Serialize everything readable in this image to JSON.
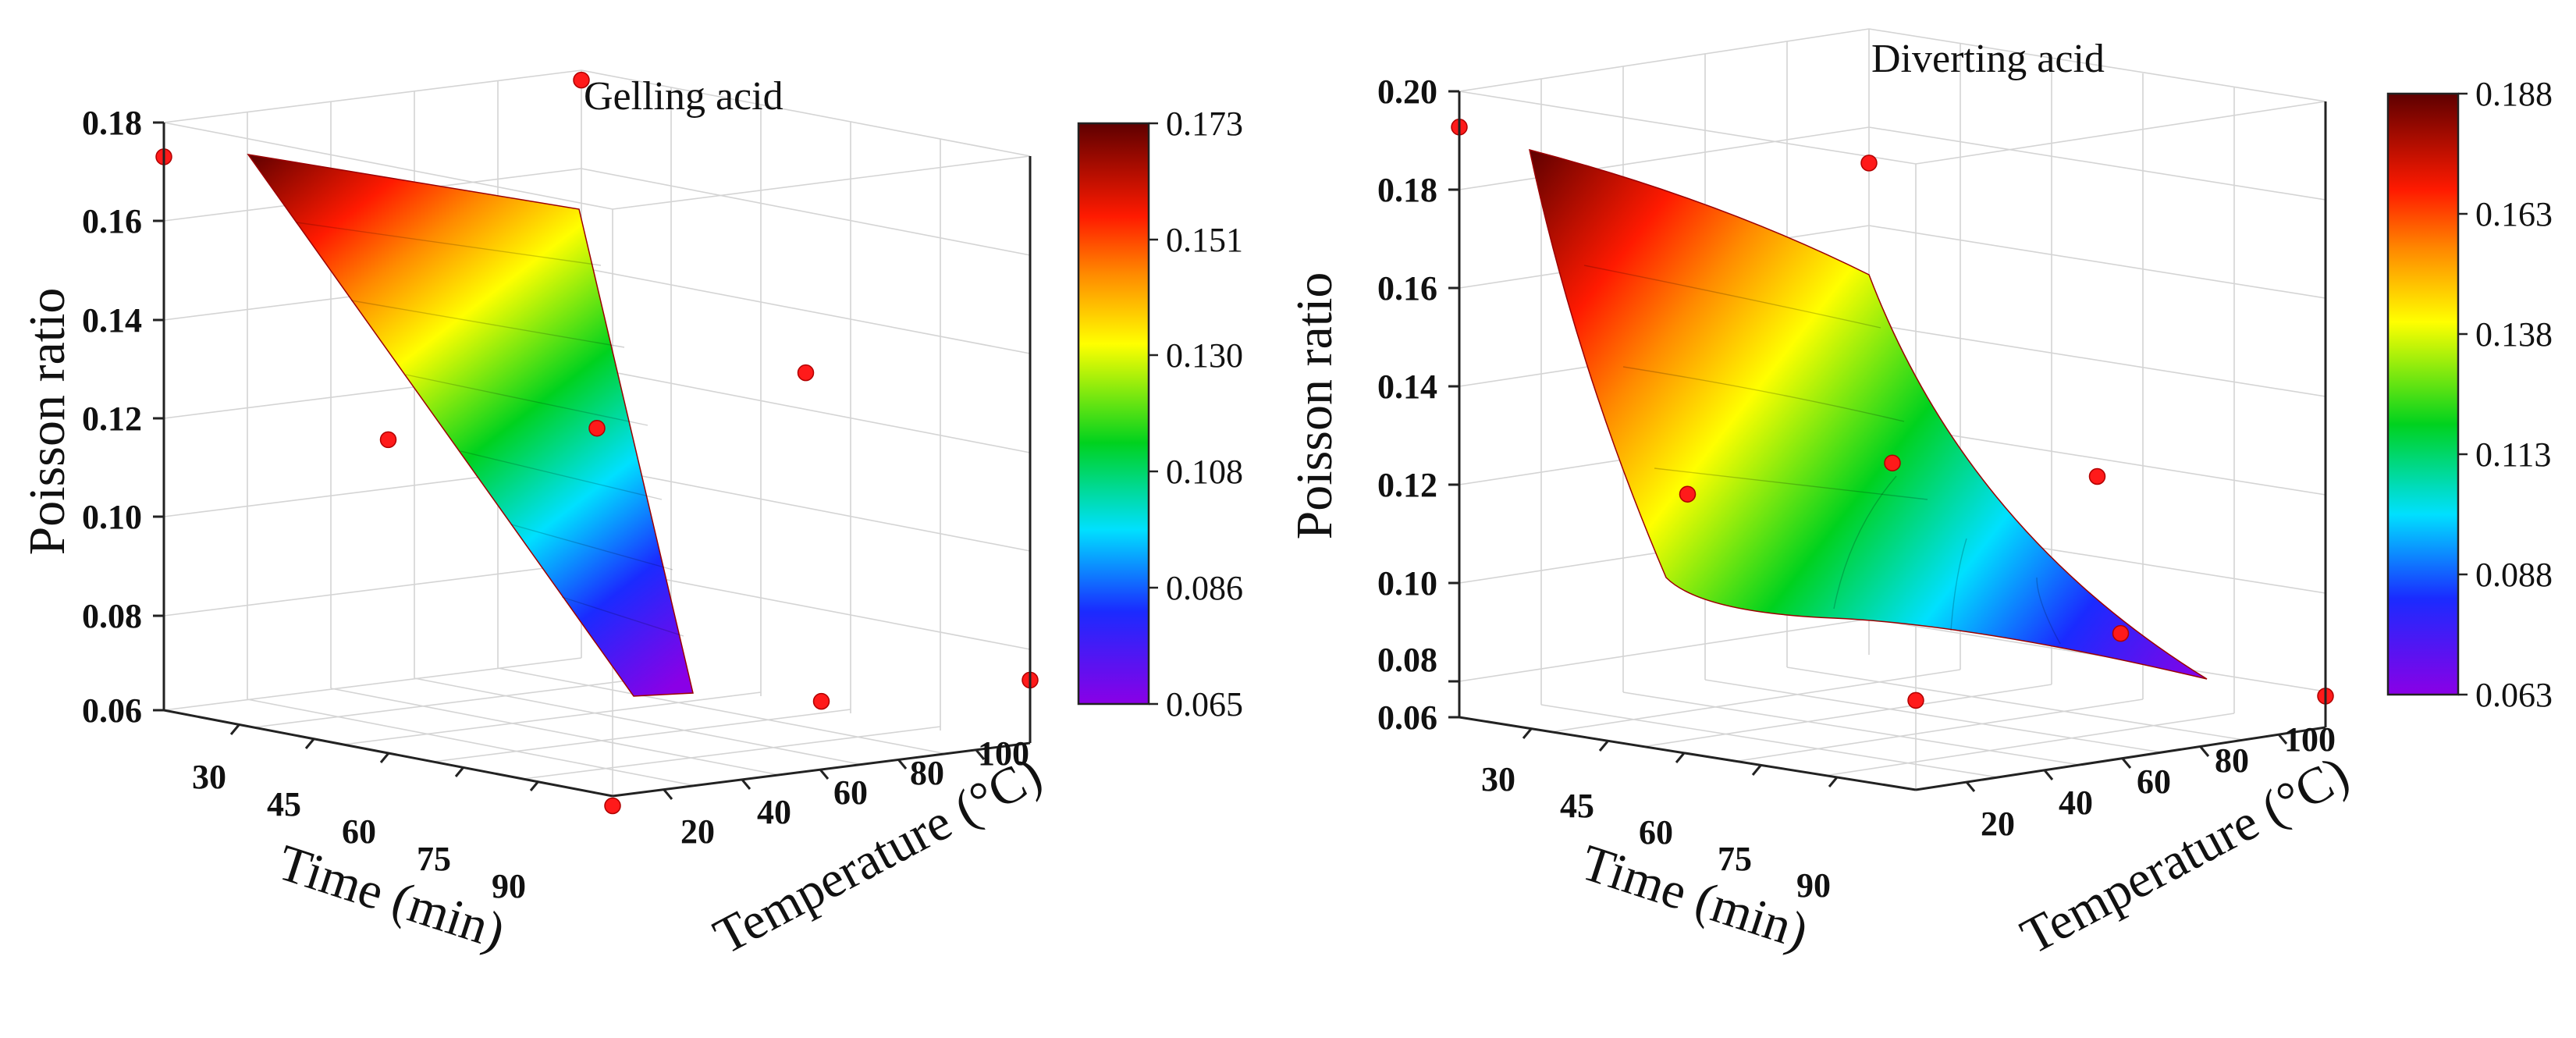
{
  "chart_data": [
    {
      "type": "surface3d",
      "title": "Gelling acid",
      "xlabel": "Time (min)",
      "ylabel": "Temperature (°C)",
      "zlabel": "Poisson ratio",
      "x_ticks": [
        "30",
        "45",
        "60",
        "75",
        "90"
      ],
      "y_ticks": [
        "20",
        "40",
        "60",
        "80",
        "100"
      ],
      "z_ticks": [
        "0.06",
        "0.08",
        "0.10",
        "0.12",
        "0.14",
        "0.16",
        "0.18"
      ],
      "xlim": [
        30,
        90
      ],
      "ylim": [
        20,
        100
      ],
      "zlim": [
        0.06,
        0.18
      ],
      "surface_corners": [
        {
          "time": 30,
          "temperature": 20,
          "value": 0.173
        },
        {
          "time": 30,
          "temperature": 100,
          "value": 0.166
        },
        {
          "time": 90,
          "temperature": 20,
          "value": 0.074
        },
        {
          "time": 90,
          "temperature": 100,
          "value": 0.065
        }
      ],
      "points": [
        {
          "time": 30,
          "temperature": 20,
          "value": 0.173
        },
        {
          "time": 30,
          "temperature": 100,
          "value": 0.178
        },
        {
          "time": 60,
          "temperature": 20,
          "value": 0.124
        },
        {
          "time": 60,
          "temperature": 60,
          "value": 0.121
        },
        {
          "time": 60,
          "temperature": 100,
          "value": 0.127
        },
        {
          "time": 90,
          "temperature": 20,
          "value": 0.058
        },
        {
          "time": 90,
          "temperature": 60,
          "value": 0.074
        },
        {
          "time": 90,
          "temperature": 100,
          "value": 0.073
        }
      ],
      "colorbar": {
        "min": 0.065,
        "max": 0.173,
        "ticks": [
          "0.173",
          "0.151",
          "0.130",
          "0.108",
          "0.086",
          "0.065"
        ]
      }
    },
    {
      "type": "surface3d",
      "title": "Diverting acid",
      "xlabel": "Time (min)",
      "ylabel": "Temperature (°C)",
      "zlabel": "Poisson ratio",
      "x_ticks": [
        "30",
        "45",
        "60",
        "75",
        "90"
      ],
      "y_ticks": [
        "20",
        "40",
        "60",
        "80",
        "100"
      ],
      "z_ticks": [
        "0.06",
        "0.08",
        "0.10",
        "0.12",
        "0.14",
        "0.16",
        "0.18",
        "0.20"
      ],
      "xlim": [
        30,
        90
      ],
      "ylim": [
        20,
        100
      ],
      "zlim": [
        0.06,
        0.2
      ],
      "surface_corners": [
        {
          "time": 30,
          "temperature": 20,
          "value": 0.188
        },
        {
          "time": 30,
          "temperature": 100,
          "value": 0.168
        },
        {
          "time": 90,
          "temperature": 20,
          "value": 0.087
        },
        {
          "time": 90,
          "temperature": 100,
          "value": 0.063
        }
      ],
      "points": [
        {
          "time": 30,
          "temperature": 20,
          "value": 0.192
        },
        {
          "time": 30,
          "temperature": 100,
          "value": 0.17
        },
        {
          "time": 60,
          "temperature": 20,
          "value": 0.118
        },
        {
          "time": 60,
          "temperature": 60,
          "value": 0.118
        },
        {
          "time": 60,
          "temperature": 100,
          "value": 0.108
        },
        {
          "time": 90,
          "temperature": 20,
          "value": 0.08
        },
        {
          "time": 90,
          "temperature": 60,
          "value": 0.088
        },
        {
          "time": 90,
          "temperature": 100,
          "value": 0.067
        }
      ],
      "colorbar": {
        "min": 0.063,
        "max": 0.188,
        "ticks": [
          "0.188",
          "0.163",
          "0.138",
          "0.113",
          "0.088",
          "0.063"
        ]
      }
    }
  ]
}
